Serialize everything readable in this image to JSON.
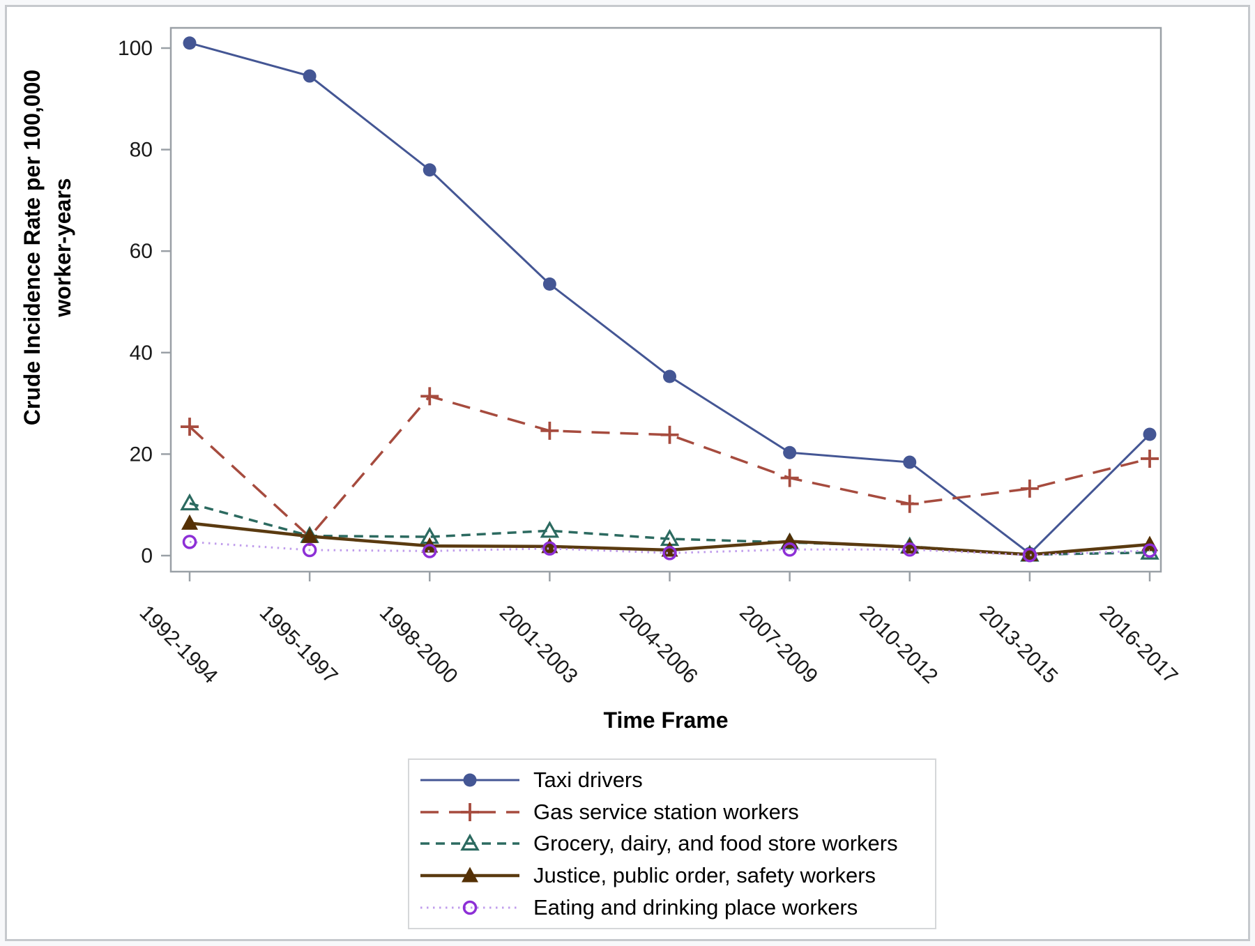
{
  "figure": {
    "outer_background": "#F7F8FA",
    "border_color": "#C6C9CD",
    "plot_background": "#FFFFFF"
  },
  "axes": {
    "frame_color": "#9AA0A6",
    "tick_color": "#9AA0A6",
    "tick_label_color": "#1A1A1A"
  },
  "chart_data": {
    "type": "line",
    "title": "",
    "xlabel": "Time Frame",
    "ylabel": "Crude Incidence Rate per 100,000 worker-years",
    "ylabel_lines": [
      "Crude Incidence Rate per 100,000",
      "worker-years"
    ],
    "categories": [
      "1992-1994",
      "1995-1997",
      "1998-2000",
      "2001-2003",
      "2004-2006",
      "2007-2009",
      "2010-2012",
      "2013-2015",
      "2016-2017"
    ],
    "yticks": [
      0,
      20,
      40,
      60,
      80,
      100
    ],
    "ylim": [
      0,
      105
    ],
    "grid": false,
    "legend_position": "bottom-center",
    "series": [
      {
        "name": "Taxi drivers",
        "color": "#445694",
        "line_color": "#445694",
        "line_style": "solid",
        "marker": "filled-circle",
        "values": [
          101,
          94.5,
          76,
          53.5,
          35.3,
          20.3,
          18.4,
          0.4,
          23.9
        ]
      },
      {
        "name": "Gas service station workers",
        "color": "#A64B3E",
        "line_color": "#A64B3E",
        "line_style": "long-dash",
        "marker": "plus",
        "values": [
          25.4,
          3.7,
          31.4,
          24.6,
          23.8,
          15.3,
          10.2,
          13.2,
          19.1
        ]
      },
      {
        "name": "Grocery, dairy, and food store workers",
        "color": "#2C6A60",
        "line_color": "#2C6A60",
        "line_style": "short-dash",
        "marker": "open-triangle",
        "values": [
          10.3,
          3.9,
          3.7,
          4.9,
          3.3,
          2.6,
          1.8,
          0.2,
          0.6
        ]
      },
      {
        "name": "Justice, public order, safety workers",
        "color": "#543005",
        "line_color": "#5A3A10",
        "line_style": "solid-thick",
        "marker": "filled-triangle",
        "values": [
          6.4,
          3.8,
          1.9,
          1.8,
          1.1,
          2.8,
          1.7,
          0.2,
          2.2
        ]
      },
      {
        "name": "Eating and drinking place workers",
        "color": "#8D2FD6",
        "line_color": "#C09DEC",
        "line_style": "dot",
        "marker": "open-circle",
        "values": [
          2.7,
          1.1,
          0.9,
          1.4,
          0.5,
          1.2,
          1.2,
          0.1,
          1.0
        ]
      }
    ]
  }
}
